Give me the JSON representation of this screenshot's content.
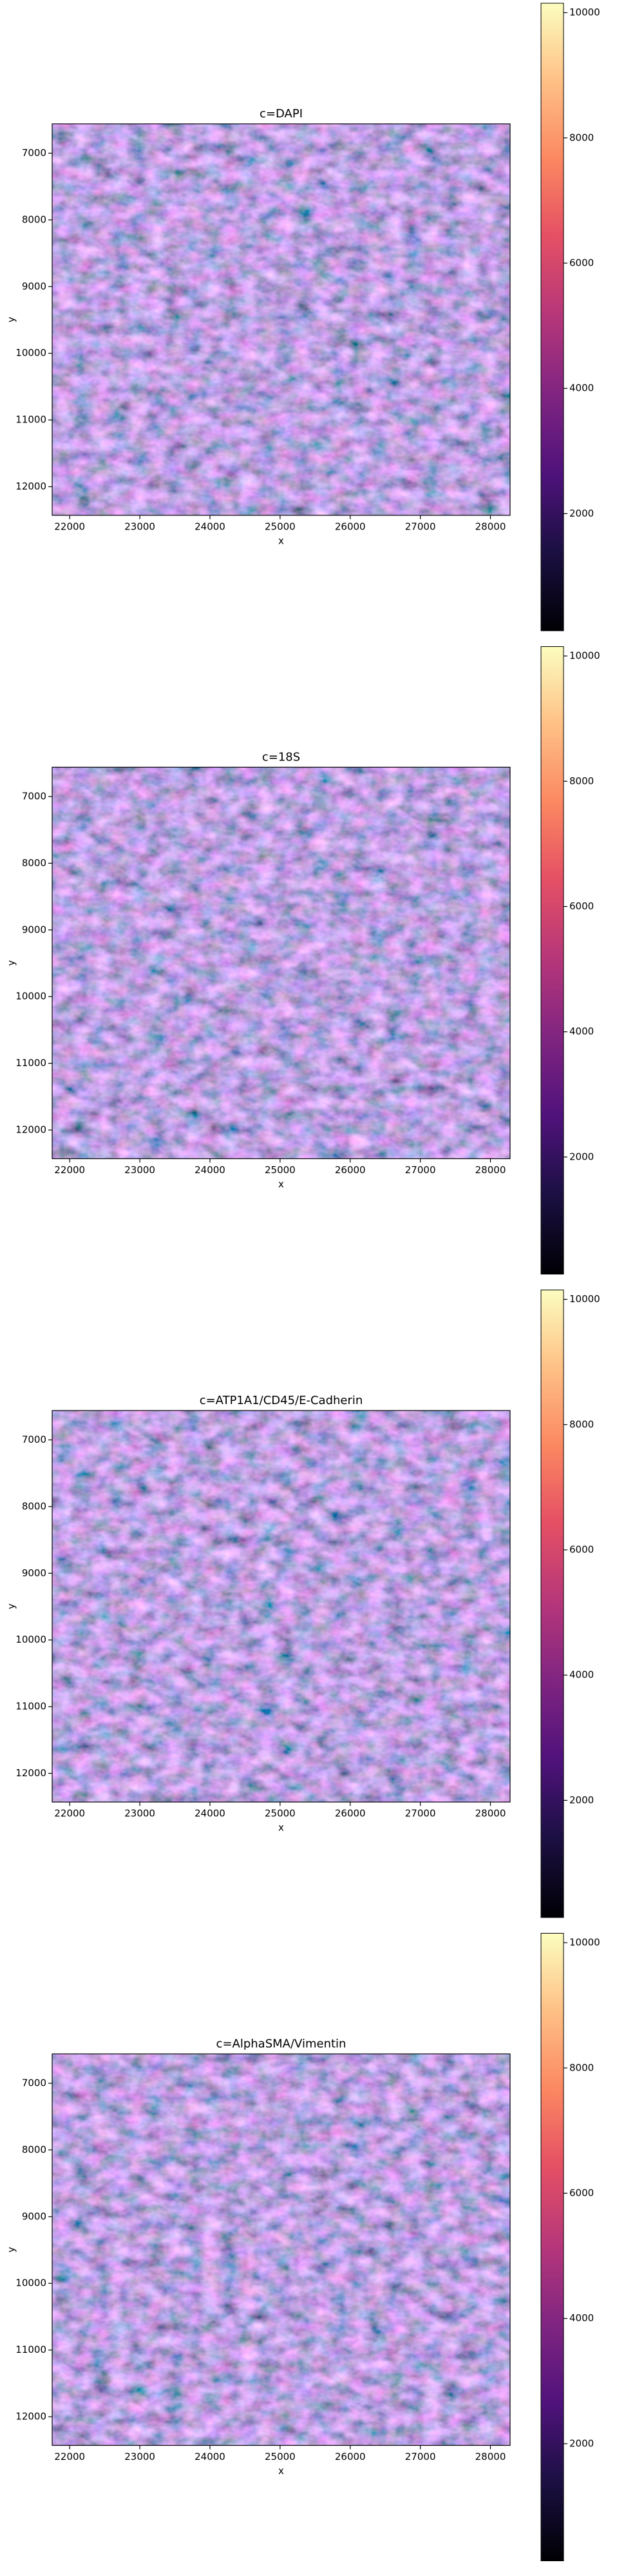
{
  "chart_data": [
    {
      "type": "image",
      "title": "c=DAPI",
      "xlabel": "x",
      "ylabel": "y",
      "xlim": [
        21750,
        28280
      ],
      "ylim": [
        12430,
        6560
      ],
      "xticks": [
        22000,
        23000,
        24000,
        25000,
        26000,
        27000,
        28000
      ],
      "yticks": [
        7000,
        8000,
        9000,
        10000,
        11000,
        12000
      ],
      "cmap": "magma",
      "clim": [
        130,
        10150
      ],
      "cticks": [
        2000,
        4000,
        6000,
        8000,
        10000
      ]
    },
    {
      "type": "image",
      "title": "c=18S",
      "xlabel": "x",
      "ylabel": "y",
      "xlim": [
        21750,
        28280
      ],
      "ylim": [
        12430,
        6560
      ],
      "xticks": [
        22000,
        23000,
        24000,
        25000,
        26000,
        27000,
        28000
      ],
      "yticks": [
        7000,
        8000,
        9000,
        10000,
        11000,
        12000
      ],
      "cmap": "magma",
      "clim": [
        130,
        10150
      ],
      "cticks": [
        2000,
        4000,
        6000,
        8000,
        10000
      ]
    },
    {
      "type": "image",
      "title": "c=ATP1A1/CD45/E-Cadherin",
      "xlabel": "x",
      "ylabel": "y",
      "xlim": [
        21750,
        28280
      ],
      "ylim": [
        12430,
        6560
      ],
      "xticks": [
        22000,
        23000,
        24000,
        25000,
        26000,
        27000,
        28000
      ],
      "yticks": [
        7000,
        8000,
        9000,
        10000,
        11000,
        12000
      ],
      "cmap": "magma",
      "clim": [
        130,
        10150
      ],
      "cticks": [
        2000,
        4000,
        6000,
        8000,
        10000
      ]
    },
    {
      "type": "image",
      "title": "c=AlphaSMA/Vimentin",
      "xlabel": "x",
      "ylabel": "y",
      "xlim": [
        21750,
        28280
      ],
      "ylim": [
        12430,
        6560
      ],
      "xticks": [
        22000,
        23000,
        24000,
        25000,
        26000,
        27000,
        28000
      ],
      "yticks": [
        7000,
        8000,
        9000,
        10000,
        11000,
        12000
      ],
      "cmap": "magma",
      "clim": [
        130,
        10150
      ],
      "cticks": [
        2000,
        4000,
        6000,
        8000,
        10000
      ]
    }
  ]
}
